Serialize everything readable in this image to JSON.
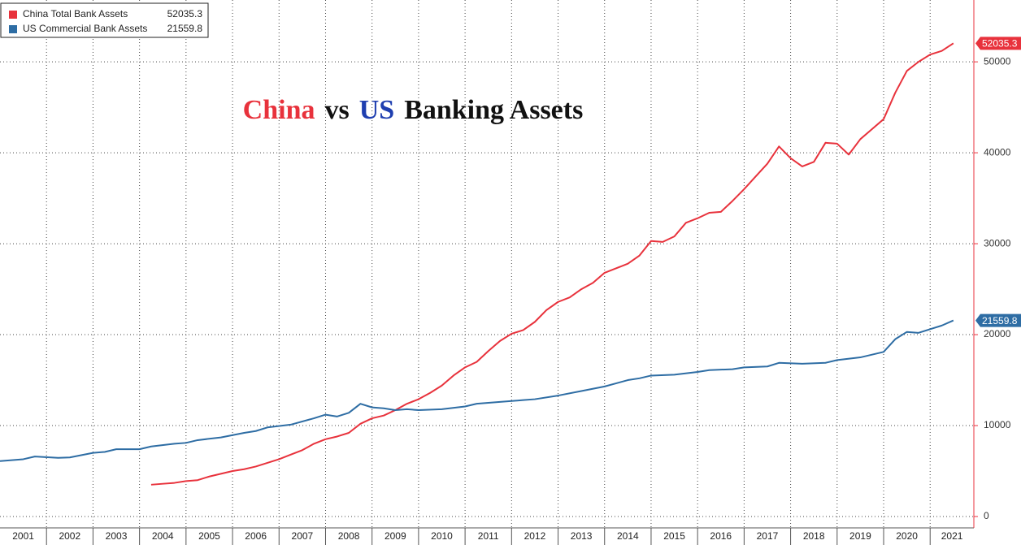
{
  "chart_data": {
    "type": "line",
    "title": [
      {
        "text": "China",
        "color": "#e8323c"
      },
      {
        "text": "vs",
        "color": "#111111"
      },
      {
        "text": "US",
        "color": "#1f3fb0"
      },
      {
        "text": "Banking Assets",
        "color": "#111111"
      }
    ],
    "xlim": [
      2001,
      2021.94
    ],
    "ylim": [
      -1250,
      56800
    ],
    "xticks": [
      2002,
      2003,
      2004,
      2005,
      2006,
      2007,
      2008,
      2009,
      2010,
      2011,
      2012,
      2013,
      2014,
      2015,
      2016,
      2017,
      2018,
      2019,
      2020,
      2021
    ],
    "x_labels": [
      "2001",
      "2002",
      "2003",
      "2004",
      "2005",
      "2006",
      "2007",
      "2008",
      "2009",
      "2010",
      "2011",
      "2012",
      "2013",
      "2014",
      "2015",
      "2016",
      "2017",
      "2018",
      "2019",
      "2020",
      "2021"
    ],
    "yticks": [
      0,
      10000,
      20000,
      30000,
      40000,
      50000
    ],
    "grid": true,
    "legend": "top-left",
    "series": [
      {
        "name": "China Total Bank Assets",
        "color": "#e8323c",
        "x": [
          2004.25,
          2004.5,
          2004.75,
          2005.0,
          2005.25,
          2005.5,
          2005.75,
          2006.0,
          2006.25,
          2006.5,
          2006.75,
          2007.0,
          2007.25,
          2007.5,
          2007.75,
          2008.0,
          2008.25,
          2008.5,
          2008.75,
          2009.0,
          2009.25,
          2009.5,
          2009.75,
          2010.0,
          2010.25,
          2010.5,
          2010.75,
          2011.0,
          2011.25,
          2011.5,
          2011.75,
          2012.0,
          2012.25,
          2012.5,
          2012.75,
          2013.0,
          2013.25,
          2013.5,
          2013.75,
          2014.0,
          2014.25,
          2014.5,
          2014.75,
          2015.0,
          2015.25,
          2015.5,
          2015.75,
          2016.0,
          2016.25,
          2016.5,
          2016.75,
          2017.0,
          2017.25,
          2017.5,
          2017.75,
          2018.0,
          2018.25,
          2018.5,
          2018.75,
          2019.0,
          2019.25,
          2019.5,
          2019.75,
          2020.0,
          2020.25,
          2020.5,
          2020.75,
          2021.0,
          2021.25,
          2021.5
        ],
        "values": [
          3500,
          3600,
          3700,
          3900,
          4000,
          4400,
          4700,
          5000,
          5200,
          5500,
          5900,
          6300,
          6800,
          7300,
          8000,
          8500,
          8800,
          9200,
          10200,
          10800,
          11100,
          11700,
          12400,
          12900,
          13600,
          14400,
          15500,
          16400,
          17000,
          18200,
          19300,
          20100,
          20500,
          21400,
          22700,
          23600,
          24100,
          25000,
          25700,
          26800,
          27300,
          27800,
          28700,
          30300,
          30200,
          30800,
          32300,
          32800,
          33400,
          33500,
          34700,
          36000,
          37400,
          38800,
          40700,
          39400,
          38500,
          39000,
          41100,
          41000,
          39800,
          41500,
          42600,
          43700,
          46600,
          49000,
          50000,
          50800,
          51200,
          52035.3
        ]
      },
      {
        "name": "US Commercial Bank Assets",
        "color": "#2e6da4",
        "x": [
          2001.0,
          2001.5,
          2001.75,
          2002.25,
          2002.5,
          2003.0,
          2003.25,
          2003.5,
          2004.0,
          2004.25,
          2004.75,
          2005.0,
          2005.25,
          2005.75,
          2006.25,
          2006.5,
          2006.75,
          2007.25,
          2007.75,
          2008.0,
          2008.25,
          2008.5,
          2008.75,
          2009.0,
          2009.25,
          2009.5,
          2009.75,
          2010.0,
          2010.5,
          2011.0,
          2011.25,
          2011.75,
          2012.25,
          2012.5,
          2013.0,
          2013.5,
          2014.0,
          2014.5,
          2014.75,
          2015.0,
          2015.5,
          2016.0,
          2016.25,
          2016.75,
          2017.0,
          2017.5,
          2017.75,
          2018.25,
          2018.75,
          2019.0,
          2019.5,
          2019.75,
          2020.0,
          2020.25,
          2020.5,
          2020.75,
          2021.0,
          2021.25,
          2021.5
        ],
        "values": [
          6100,
          6300,
          6600,
          6450,
          6500,
          7000,
          7100,
          7400,
          7400,
          7700,
          8000,
          8100,
          8400,
          8700,
          9200,
          9400,
          9800,
          10100,
          10800,
          11200,
          11000,
          11400,
          12400,
          12000,
          11900,
          11700,
          11800,
          11700,
          11800,
          12100,
          12400,
          12600,
          12800,
          12900,
          13300,
          13800,
          14300,
          15000,
          15200,
          15500,
          15600,
          15900,
          16100,
          16200,
          16400,
          16500,
          16900,
          16800,
          16900,
          17200,
          17500,
          17800,
          18100,
          19500,
          20300,
          20200,
          20600,
          21000,
          21559.8
        ]
      }
    ]
  }
}
